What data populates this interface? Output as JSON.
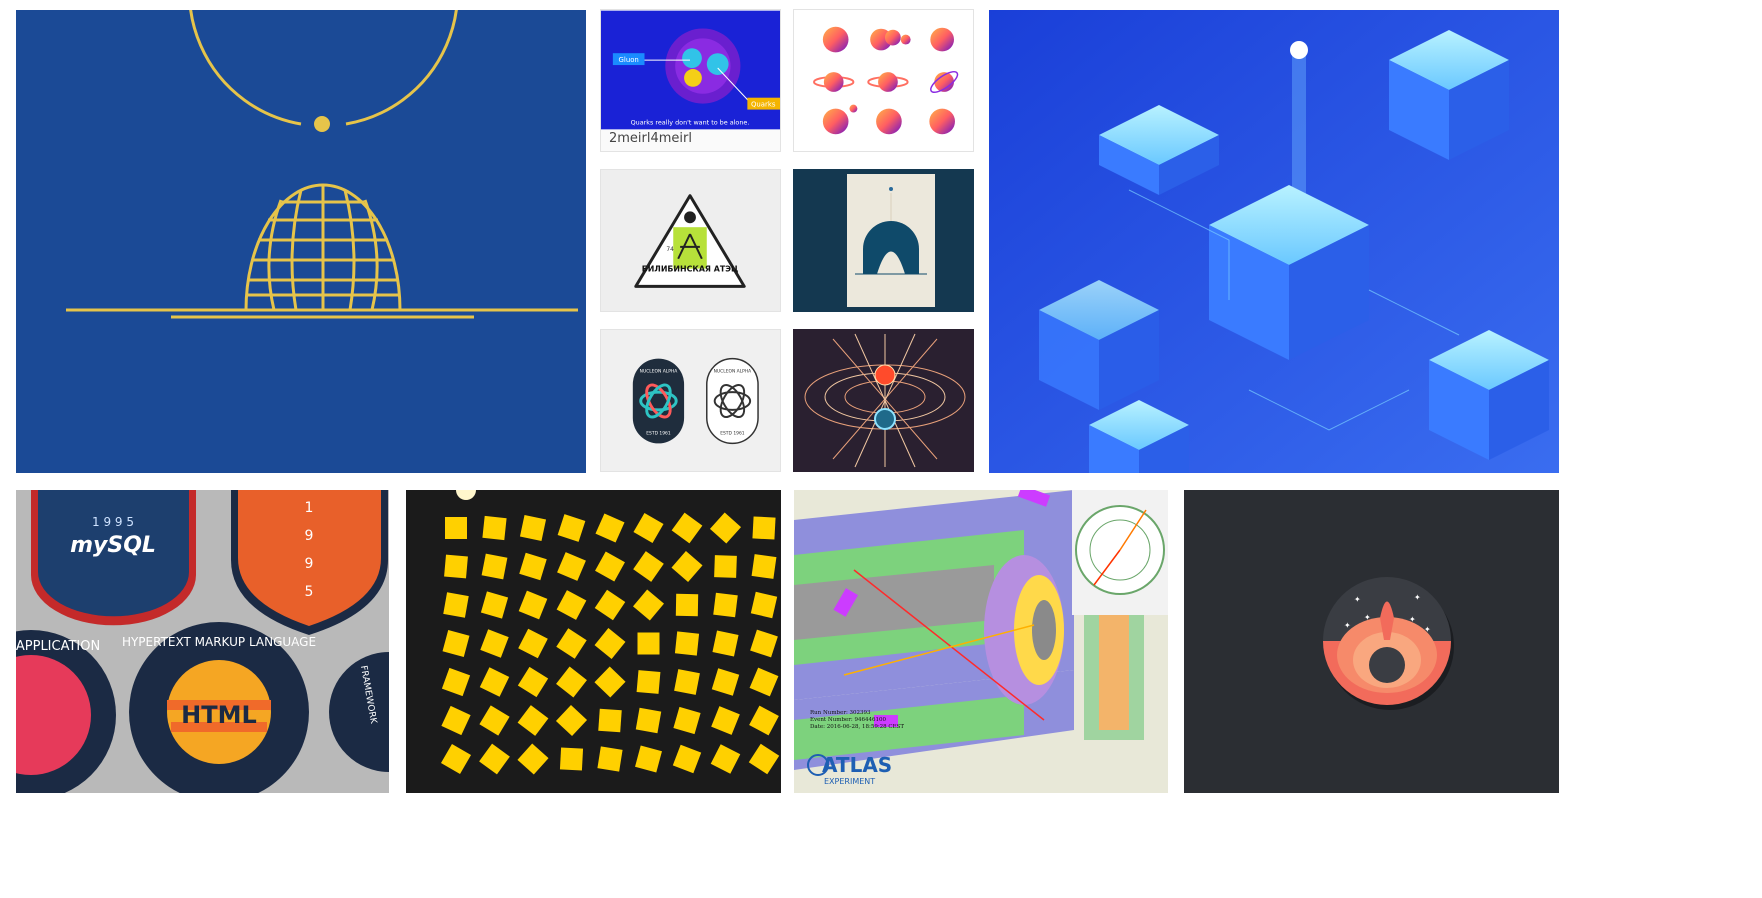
{
  "tiles": [
    {
      "id": "orbit-globe",
      "icon": "globe-orbit-illustration",
      "bg": "#1b4a96",
      "accent": "#e6c44a"
    },
    {
      "id": "gluon-quarks",
      "icon": "quark-diagram-illustration",
      "bg": "#1a22d6",
      "label_gluon": "Gluon",
      "label_quarks": "Quarks",
      "footnote": "Quarks really don't want to be alone.",
      "caption": "2meirl4meirl"
    },
    {
      "id": "planet-icons",
      "icon": "planet-icon-set",
      "bg": "#ffffff"
    },
    {
      "id": "bilibino-badge",
      "icon": "triangle-badge",
      "bg": "#eeeeee",
      "badge_title": "БИЛИБИНСКАЯ АТЭЦ",
      "badge_year": "74"
    },
    {
      "id": "eclipse-poster",
      "icon": "eclipse-poster-illustration",
      "bg": "#143850"
    },
    {
      "id": "nucleon-badges",
      "icon": "nucleon-alpha-badges",
      "bg": "#f0f0f0",
      "badge_text": "NUCLEON ALPHA",
      "badge_estd": "ESTD 1961"
    },
    {
      "id": "magnetic-field",
      "icon": "magnetic-field-illustration",
      "bg": "#2a2030"
    },
    {
      "id": "isometric-servers",
      "icon": "isometric-server-illustration",
      "bg": "#2a4fe0"
    },
    {
      "id": "dev-patches",
      "icon": "developer-patches",
      "bg": "#b9b9b9",
      "mysql_year": "1 9 9 5",
      "mysql_label": "mySQL",
      "shield_digits": [
        "1",
        "9",
        "9",
        "5"
      ],
      "html_label": "HTML",
      "ring_text": "HYPERTEXT MARKUP LANGUAGE",
      "left_text": "ON APPLICATION",
      "right_text": "FRAMEWORK"
    },
    {
      "id": "yellow-squares",
      "icon": "rotating-squares-pattern",
      "bg": "#1b1b1b",
      "accent": "#ffd000"
    },
    {
      "id": "atlas-event",
      "icon": "atlas-detector-event",
      "bg": "#e8e8d8",
      "run_line1": "Run Number: 302393",
      "run_line2": "Event Number: 946446100",
      "run_line3": "Date: 2016-06-28, 18:59:28 CEST",
      "atlas_logo": "ATLAS",
      "atlas_sub": "EXPERIMENT"
    },
    {
      "id": "rocket-launch",
      "icon": "rocket-launch-badge",
      "bg": "#2b2e33"
    }
  ]
}
